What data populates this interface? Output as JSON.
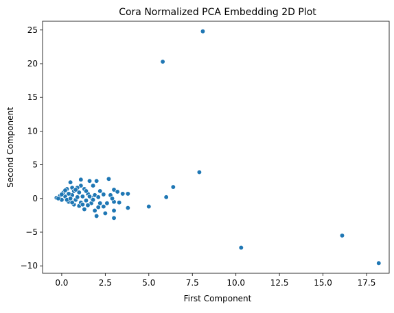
{
  "chart_data": {
    "type": "scatter",
    "title": "Cora Normalized PCA Embedding 2D Plot",
    "xlabel": "First Component",
    "ylabel": "Second Component",
    "xlim": [
      -1.1,
      18.8
    ],
    "ylim": [
      -11.1,
      26.3
    ],
    "xticks": [
      0.0,
      2.5,
      5.0,
      7.5,
      10.0,
      12.5,
      15.0,
      17.5
    ],
    "xtick_labels": [
      "0.0",
      "2.5",
      "5.0",
      "7.5",
      "10.0",
      "12.5",
      "15.0",
      "17.5"
    ],
    "yticks": [
      -10,
      -5,
      0,
      5,
      10,
      15,
      20,
      25
    ],
    "ytick_labels": [
      "−10",
      "−5",
      "0",
      "5",
      "10",
      "15",
      "20",
      "25"
    ],
    "grid": false,
    "legend": "none",
    "series": [
      {
        "color": "#1f77b4",
        "points": [
          [
            8.1,
            24.8
          ],
          [
            5.8,
            20.3
          ],
          [
            7.9,
            3.9
          ],
          [
            6.4,
            1.7
          ],
          [
            6.0,
            0.2
          ],
          [
            5.0,
            -1.2
          ],
          [
            10.3,
            -7.3
          ],
          [
            16.1,
            -5.5
          ],
          [
            18.2,
            -9.6
          ],
          [
            0.5,
            2.4
          ],
          [
            1.1,
            2.8
          ],
          [
            1.6,
            2.6
          ],
          [
            2.0,
            2.6
          ],
          [
            2.7,
            2.9
          ],
          [
            1.1,
            1.9
          ],
          [
            1.8,
            1.9
          ],
          [
            0.9,
            1.6
          ],
          [
            0.6,
            1.6
          ],
          [
            1.3,
            1.4
          ],
          [
            0.3,
            1.4
          ],
          [
            2.2,
            1.1
          ],
          [
            3.0,
            1.3
          ],
          [
            3.2,
            1.0
          ],
          [
            3.5,
            0.7
          ],
          [
            3.8,
            0.7
          ],
          [
            2.8,
            0.5
          ],
          [
            2.4,
            0.6
          ],
          [
            1.9,
            0.5
          ],
          [
            1.5,
            0.7
          ],
          [
            1.0,
            0.9
          ],
          [
            0.1,
            0.9
          ],
          [
            -0.1,
            0.4
          ],
          [
            -0.3,
            0.1
          ],
          [
            0.0,
            -0.2
          ],
          [
            0.2,
            0.3
          ],
          [
            0.4,
            -0.5
          ],
          [
            0.7,
            -0.9
          ],
          [
            1.0,
            -1.1
          ],
          [
            1.3,
            -1.6
          ],
          [
            1.9,
            -1.8
          ],
          [
            2.0,
            -2.6
          ],
          [
            2.5,
            -2.2
          ],
          [
            3.0,
            -2.9
          ],
          [
            3.0,
            -1.8
          ],
          [
            2.6,
            -0.7
          ],
          [
            3.0,
            -0.5
          ],
          [
            3.3,
            -0.6
          ],
          [
            3.8,
            -1.4
          ],
          [
            2.2,
            -0.7
          ],
          [
            1.7,
            -0.7
          ],
          [
            1.4,
            -0.3
          ],
          [
            1.1,
            -0.6
          ],
          [
            0.8,
            -0.2
          ],
          [
            0.6,
            0.5
          ],
          [
            1.2,
            0.3
          ],
          [
            1.7,
            0.1
          ],
          [
            2.1,
            0.2
          ],
          [
            0.3,
            -0.2
          ],
          [
            0.5,
            0.0
          ],
          [
            0.9,
            0.2
          ],
          [
            1.5,
            -1.0
          ],
          [
            2.4,
            -1.2
          ],
          [
            0.2,
            1.2
          ],
          [
            0.7,
            1.1
          ],
          [
            1.4,
            1.1
          ],
          [
            0.4,
            0.7
          ],
          [
            -0.2,
            0.0
          ],
          [
            1.8,
            -0.2
          ],
          [
            2.9,
            0.0
          ],
          [
            0.0,
            0.6
          ],
          [
            0.6,
            -0.6
          ],
          [
            1.2,
            -0.9
          ],
          [
            2.1,
            -1.3
          ],
          [
            0.8,
            1.3
          ],
          [
            1.6,
            0.3
          ]
        ]
      }
    ]
  }
}
